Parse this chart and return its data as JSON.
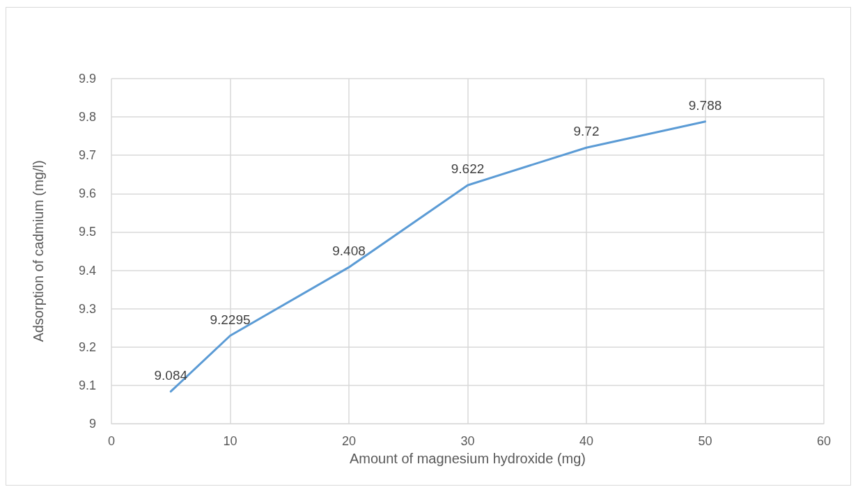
{
  "chart_data": {
    "type": "line",
    "xlabel": "Amount of magnesium hydroxide (mg)",
    "ylabel": "Adsorption of cadmium (mg/l)",
    "x": [
      5,
      10,
      20,
      30,
      40,
      50
    ],
    "series": [
      {
        "color": "#5b9bd5",
        "values": [
          9.084,
          9.2295,
          9.408,
          9.622,
          9.72,
          9.788
        ]
      }
    ],
    "xlim": [
      0,
      60
    ],
    "xticks": [
      0,
      10,
      20,
      30,
      40,
      50,
      60
    ],
    "ylim": [
      9,
      9.9
    ],
    "yticks": [
      9,
      9.1,
      9.2,
      9.3,
      9.4,
      9.5,
      9.6,
      9.7,
      9.8,
      9.9
    ],
    "grid": true,
    "data_labels": true
  }
}
